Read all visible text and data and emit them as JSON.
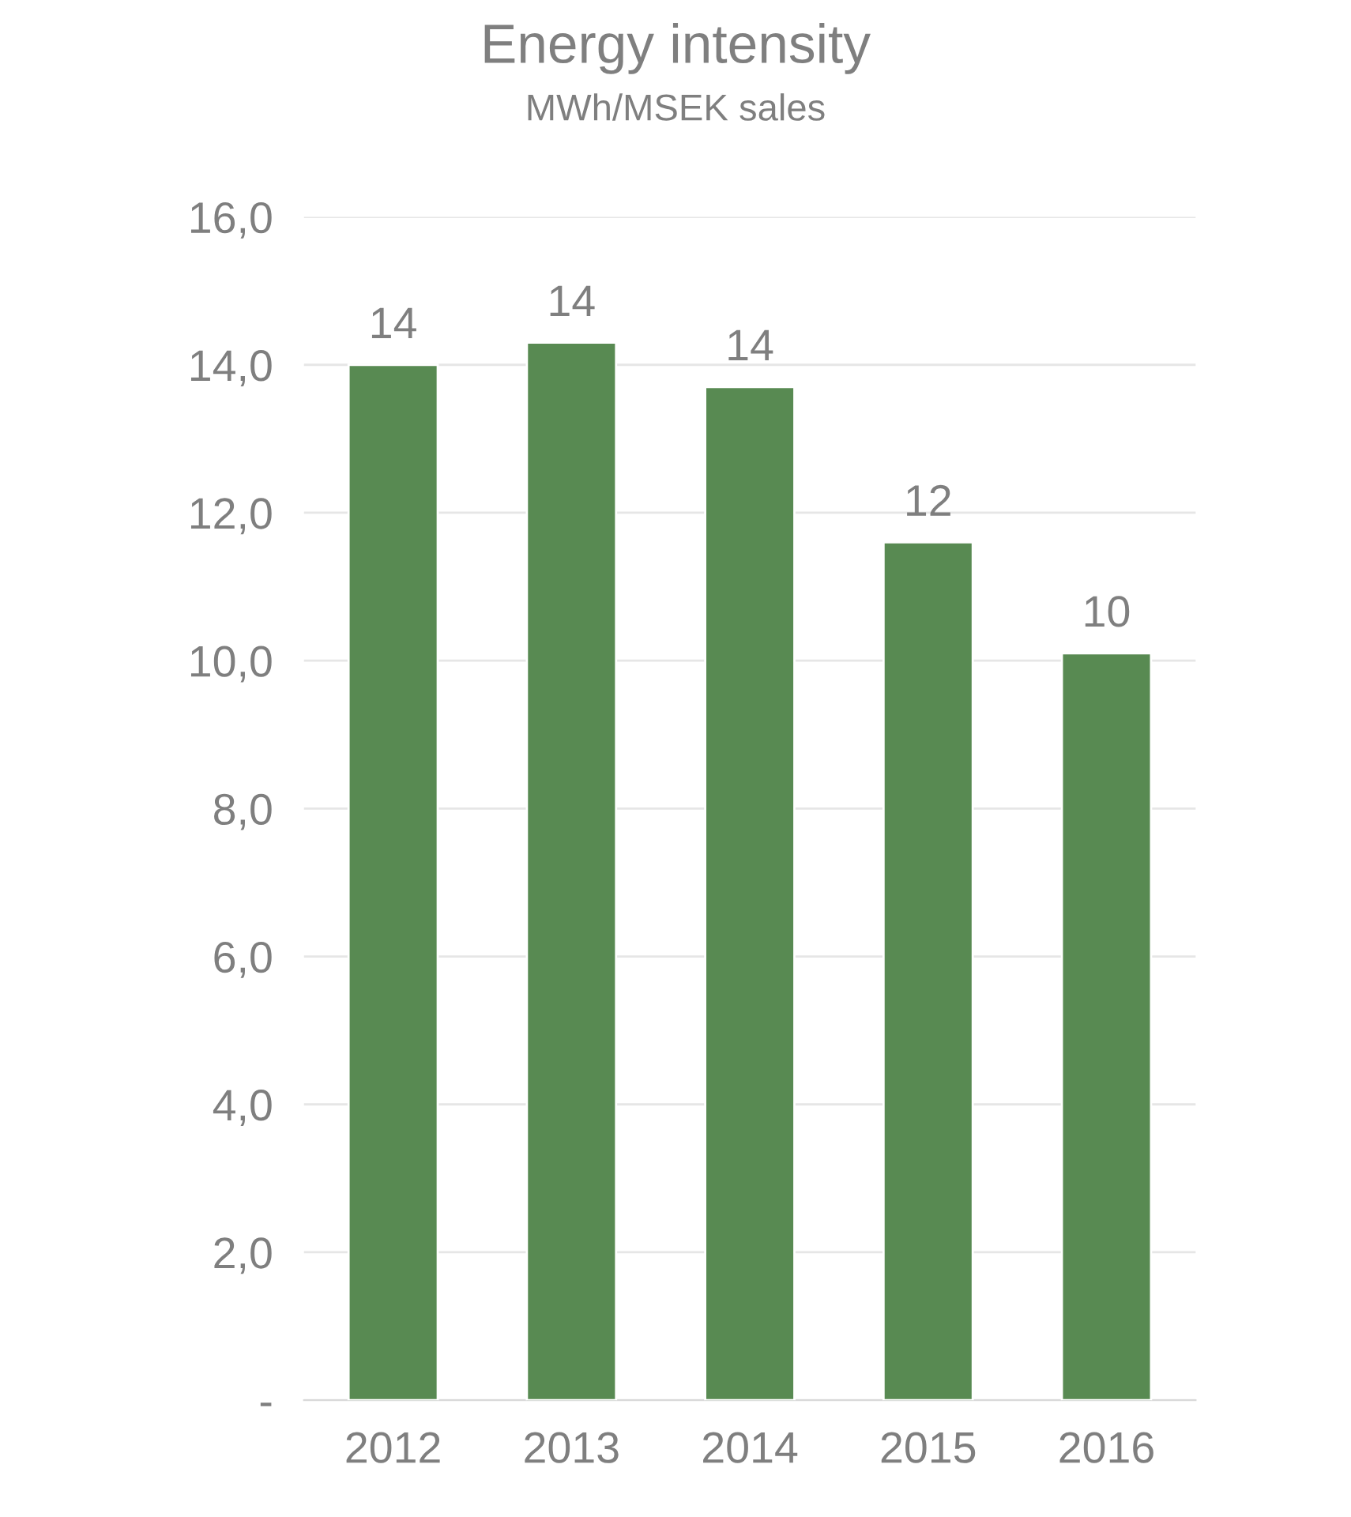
{
  "chart_data": {
    "type": "bar",
    "title": "Energy intensity",
    "subtitle": "MWh/MSEK sales",
    "categories": [
      "2012",
      "2013",
      "2014",
      "2015",
      "2016"
    ],
    "values": [
      14.0,
      14.3,
      13.7,
      11.6,
      10.1
    ],
    "value_labels": [
      "14",
      "14",
      "14",
      "12",
      "10"
    ],
    "color": "#588a52",
    "ylim": [
      0,
      16
    ],
    "yticks": [
      {
        "value": 0,
        "label": "-"
      },
      {
        "value": 2,
        "label": "2,0"
      },
      {
        "value": 4,
        "label": "4,0"
      },
      {
        "value": 6,
        "label": "6,0"
      },
      {
        "value": 8,
        "label": "8,0"
      },
      {
        "value": 10,
        "label": "10,0"
      },
      {
        "value": 12,
        "label": "12,0"
      },
      {
        "value": 14,
        "label": "14,0"
      },
      {
        "value": 16,
        "label": "16,0"
      }
    ],
    "grid": "y"
  }
}
